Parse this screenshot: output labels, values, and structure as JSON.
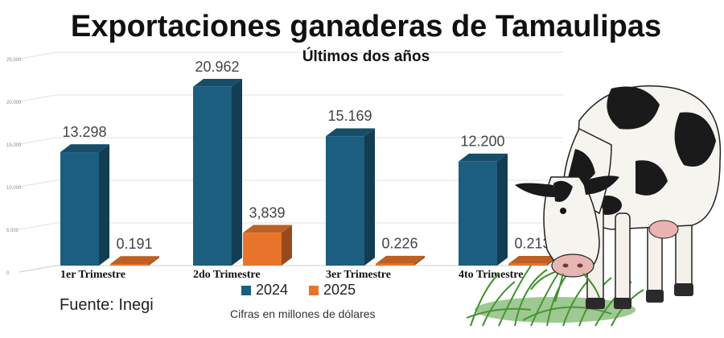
{
  "chart_data": {
    "type": "bar",
    "title": "Exportaciones ganaderas de Tamaulipas",
    "subtitle": "Últimos dos años",
    "categories": [
      "1er Trimestre",
      "2do Trimestre",
      "3er Trimestre",
      "4to Trimestre"
    ],
    "series": [
      {
        "name": "2024",
        "values": [
          13.298,
          20.962,
          15.169,
          12.2
        ],
        "labels": [
          "13.298",
          "20.962",
          "15.169",
          "12.200"
        ],
        "color": "#1b5e80"
      },
      {
        "name": "2025",
        "values": [
          0.191,
          3.839,
          0.226,
          0.213
        ],
        "labels": [
          "0.191",
          "3,839",
          "0.226",
          "0.213"
        ],
        "color": "#e8742b"
      }
    ],
    "y_ticks": [
      "0",
      "5,000",
      "10,000",
      "15,000",
      "20,000",
      "25,000"
    ],
    "ylim": [
      0,
      25
    ],
    "grid": true,
    "legend_position": "bottom",
    "note": "Cifras en millones de dólares",
    "source": "Fuente: Inegi"
  },
  "image": {
    "icon": "cow-grazing-icon"
  }
}
